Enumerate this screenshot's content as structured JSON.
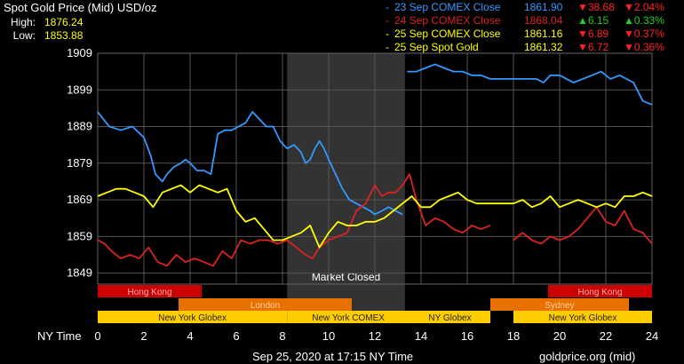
{
  "header": {
    "title": "Spot Gold Price (Mid) USD/oz",
    "high_label": "High:",
    "high_value": "1876.24",
    "low_label": "Low:",
    "low_value": "1853.88"
  },
  "legend": [
    {
      "label": "23 Sep COMEX Close",
      "price": "1861.90",
      "change": "▼38.68",
      "pct": "▼2.04%",
      "color": "#3399ff",
      "change_color": "#ff2222"
    },
    {
      "label": "24 Sep COMEX Close",
      "price": "1868.04",
      "change": "▲6.15",
      "pct": "▲0.33%",
      "color": "#dd2222",
      "change_color": "#22cc22"
    },
    {
      "label": "25 Sep COMEX Close",
      "price": "1861.16",
      "change": "▼6.89",
      "pct": "▼0.37%",
      "color": "#ffff00",
      "change_color": "#ff2222"
    },
    {
      "label": "25 Sep Spot Gold",
      "price": "1861.32",
      "change": "▼6.72",
      "pct": "▼0.36%",
      "color": "#ffff00",
      "change_color": "#ff2222"
    }
  ],
  "footer": {
    "timestamp": "Sep 25, 2020 at 17:15 NY Time",
    "source": "goldprice.org (mid)"
  },
  "market_closed_label": "Market Closed",
  "sessions": [
    {
      "name": "Hong Kong",
      "start": 0,
      "end": 4.5,
      "color": "#cc0000",
      "row": 0
    },
    {
      "name": "Hong Kong",
      "start": 19.5,
      "end": 24,
      "color": "#cc0000",
      "row": 0
    },
    {
      "name": "London",
      "start": 3.5,
      "end": 11,
      "color": "#e87000",
      "row": 1
    },
    {
      "name": "Sydney",
      "start": 17,
      "end": 23,
      "color": "#e87000",
      "row": 1
    },
    {
      "name": "New York Globex",
      "start": 0,
      "end": 8.2,
      "color": "#ffcc00",
      "row": 2
    },
    {
      "name": "New York COMEX",
      "start": 8.2,
      "end": 13.5,
      "color": "#ffcc00",
      "row": 2
    },
    {
      "name": "NY Globex",
      "start": 13.5,
      "end": 17,
      "color": "#ffcc00",
      "row": 2
    },
    {
      "name": "New York Globex",
      "start": 18,
      "end": 24,
      "color": "#ffcc00",
      "row": 2
    }
  ],
  "chart_data": {
    "type": "line",
    "xlabel": "NY Time",
    "x_ticks": [
      0,
      2,
      4,
      6,
      8,
      10,
      12,
      14,
      16,
      18,
      20,
      22,
      24
    ],
    "y_ticks": [
      1849,
      1859,
      1869,
      1879,
      1889,
      1899,
      1909
    ],
    "xlim": [
      0,
      24
    ],
    "ylim": [
      1846,
      1909
    ],
    "grid": true,
    "shaded_region": {
      "start": 8.2,
      "end": 13.3,
      "label": "Market Closed"
    },
    "series": [
      {
        "name": "23 Sep COMEX Close",
        "color": "#3399ff",
        "x": [
          0,
          0.5,
          1,
          1.5,
          2,
          2.3,
          2.5,
          2.8,
          3,
          3.3,
          3.6,
          3.8,
          4,
          4.3,
          4.6,
          4.9,
          5.2,
          5.5,
          5.8,
          6.1,
          6.4,
          6.7,
          7,
          7.3,
          7.6,
          7.9,
          8.2,
          8.5,
          8.8,
          9,
          9.2,
          9.4,
          9.6,
          9.8,
          10,
          10.3,
          10.6,
          10.9,
          11.2,
          11.5,
          11.8,
          12,
          12.3,
          12.6,
          12.9,
          13.2
        ],
        "y": [
          1893,
          1889,
          1888,
          1889,
          1886,
          1881,
          1876,
          1874,
          1876,
          1878,
          1879,
          1880,
          1879,
          1877,
          1877,
          1876,
          1887,
          1888,
          1888,
          1889,
          1890,
          1893,
          1891,
          1889,
          1889,
          1885,
          1883,
          1884,
          1882,
          1879,
          1880,
          1883,
          1885,
          1883,
          1880,
          1876,
          1872,
          1869,
          1868,
          1867,
          1866,
          1865,
          1866,
          1867,
          1866,
          1865
        ]
      },
      {
        "name": "23 Sep COMEX Close (after)",
        "color": "#3399ff",
        "x": [
          13.4,
          13.8,
          14.2,
          14.6,
          15,
          15.4,
          15.8,
          16.2,
          16.6,
          17,
          17.5,
          18,
          18.5,
          19,
          19.3,
          19.6,
          20,
          20.3,
          20.6,
          21,
          21.4,
          21.8,
          22.2,
          22.6,
          22.9,
          23.2,
          23.6,
          24
        ],
        "y": [
          1904,
          1904,
          1905,
          1906,
          1905,
          1904,
          1904,
          1903,
          1903,
          1902,
          1902,
          1902,
          1902,
          1902,
          1901,
          1903,
          1903,
          1902,
          1901,
          1902,
          1903,
          1904,
          1902,
          1903,
          1902,
          1901,
          1896,
          1895
        ]
      },
      {
        "name": "24 Sep COMEX Close",
        "color": "#dd2222",
        "x": [
          0,
          0.3,
          0.6,
          1,
          1.4,
          1.8,
          2.2,
          2.6,
          3,
          3.4,
          3.8,
          4.2,
          4.6,
          5,
          5.4,
          5.8,
          6.2,
          6.6,
          7,
          7.4,
          7.8,
          8.2,
          8.6,
          9,
          9.3,
          9.6,
          10,
          10.4,
          10.8,
          11.2,
          11.6,
          12,
          12.3,
          12.6,
          12.9,
          13.2,
          13.5,
          13.8,
          14.2,
          14.6,
          15,
          15.4,
          15.8,
          16.2,
          16.6,
          17
        ],
        "y": [
          1858,
          1857,
          1855,
          1853,
          1854,
          1853,
          1856,
          1852,
          1851,
          1854,
          1852,
          1853,
          1852,
          1851,
          1855,
          1853,
          1858,
          1857,
          1858,
          1858,
          1857,
          1858,
          1856,
          1854,
          1853,
          1856,
          1858,
          1859,
          1860,
          1866,
          1868,
          1873,
          1870,
          1871,
          1871,
          1873,
          1876,
          1869,
          1862,
          1864,
          1863,
          1861,
          1860,
          1862,
          1861,
          1862
        ]
      },
      {
        "name": "24 Sep COMEX Close (evening)",
        "color": "#dd2222",
        "x": [
          18,
          18.4,
          18.8,
          19.2,
          19.6,
          20,
          20.4,
          20.8,
          21.2,
          21.6,
          22,
          22.4,
          22.8,
          23.2,
          23.6,
          24
        ],
        "y": [
          1858,
          1860,
          1858,
          1857,
          1859,
          1858,
          1859,
          1861,
          1864,
          1867,
          1863,
          1862,
          1866,
          1861,
          1860,
          1857
        ]
      },
      {
        "name": "25 Sep COMEX Close",
        "color": "#ffff00",
        "x": [
          0,
          0.4,
          0.8,
          1.2,
          1.6,
          2,
          2.4,
          2.8,
          3.2,
          3.6,
          4,
          4.4,
          4.8,
          5.2,
          5.6,
          6,
          6.4,
          6.8,
          7.2,
          7.6,
          8,
          8.4,
          8.8,
          9.2,
          9.6,
          10,
          10.4,
          10.8,
          11.2,
          11.6,
          12,
          12.4,
          12.8,
          13.2,
          13.6,
          14,
          14.4,
          14.8,
          15.2,
          15.6,
          16,
          16.4,
          16.8,
          17.2,
          17.6,
          18,
          18.4,
          18.8,
          19.2,
          19.6,
          20,
          20.4,
          20.8,
          21.2,
          21.6,
          22,
          22.4,
          22.8,
          23.2,
          23.6,
          24
        ],
        "y": [
          1870,
          1871,
          1872,
          1872,
          1871,
          1870,
          1867,
          1871,
          1872,
          1873,
          1871,
          1873,
          1872,
          1871,
          1872,
          1866,
          1863,
          1864,
          1861,
          1858,
          1858,
          1859,
          1860,
          1862,
          1856,
          1860,
          1863,
          1862,
          1862,
          1863,
          1863,
          1864,
          1866,
          1868,
          1870,
          1867,
          1867,
          1869,
          1870,
          1871,
          1869,
          1868,
          1868,
          1868,
          1868,
          1868,
          1869,
          1867,
          1868,
          1870,
          1867,
          1868,
          1869,
          1868,
          1867,
          1868,
          1867,
          1870,
          1870,
          1871,
          1870
        ]
      }
    ]
  }
}
